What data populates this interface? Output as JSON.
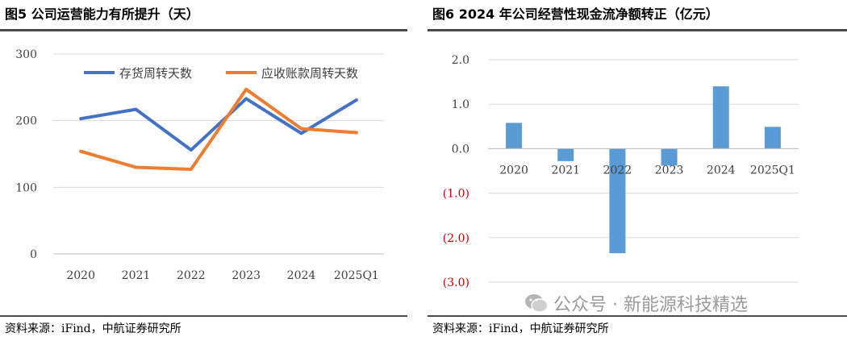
{
  "left": {
    "title": "图5 公司运营能力有所提升（天）",
    "source": "资料来源：iFind，中航证券研究所"
  },
  "right": {
    "title": "图6 2024 年公司经营性现金流净额转正（亿元）",
    "source": "资料来源：iFind，中航证券研究所"
  },
  "watermark": "公众号 · 新能源科技精选",
  "chart_data": [
    {
      "type": "line",
      "categories": [
        "2020",
        "2021",
        "2022",
        "2023",
        "2024",
        "2025Q1"
      ],
      "ylim": [
        0,
        300
      ],
      "yticks": [
        "0",
        "100",
        "200",
        "300"
      ],
      "grid": true,
      "legend": "top",
      "series": [
        {
          "name": "存货周转天数",
          "color": "#4472C4",
          "values": [
            203,
            217,
            156,
            233,
            181,
            231
          ]
        },
        {
          "name": "应收账款周转天数",
          "color": "#ED7D31",
          "values": [
            154,
            130,
            127,
            247,
            188,
            182
          ]
        }
      ]
    },
    {
      "type": "bar",
      "categories": [
        "2020",
        "2021",
        "2022",
        "2023",
        "2024",
        "2025Q1"
      ],
      "values": [
        0.58,
        -0.28,
        -2.35,
        -0.38,
        1.4,
        0.49
      ],
      "ylim": [
        -3.0,
        2.0
      ],
      "yticks": [
        "2.0",
        "1.0",
        "0.0",
        "(1.0)",
        "(2.0)",
        "(3.0)"
      ],
      "grid": true,
      "bar_color": "#5B9BD5",
      "negative_tick_color": "#C00000"
    }
  ]
}
